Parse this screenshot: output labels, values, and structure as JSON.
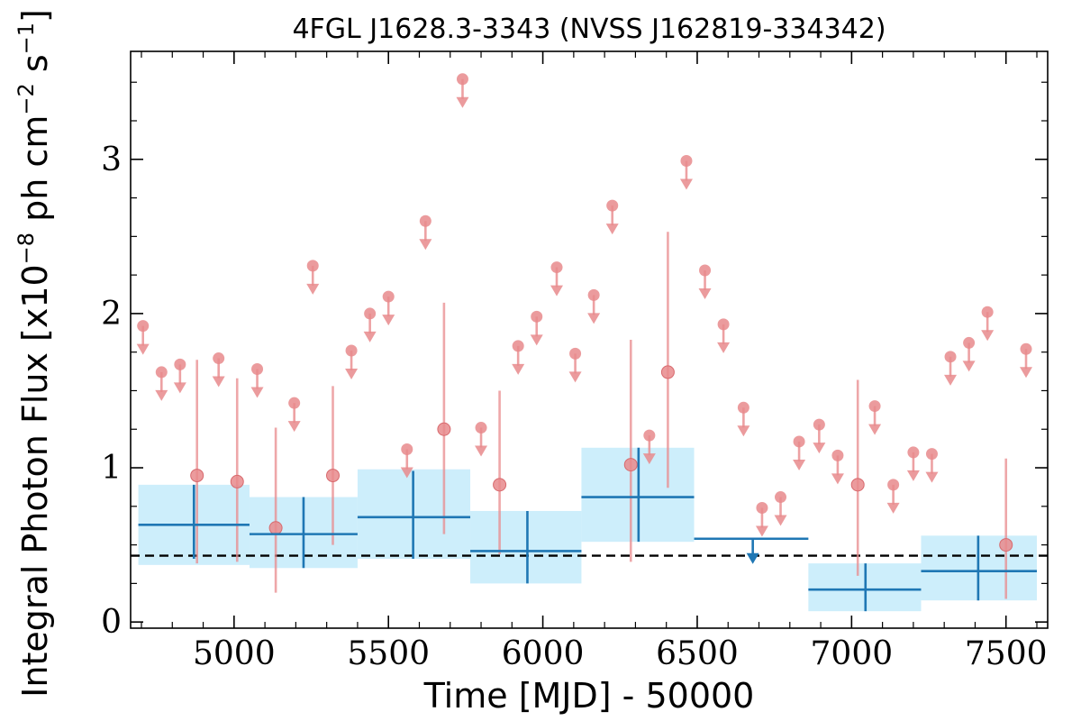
{
  "chart_data": {
    "type": "scatter",
    "title": "4FGL J1628.3-3343 (NVSS J162819-334342)",
    "xlabel": "Time [MJD] - 50000",
    "ylabel": {
      "prefix": "Integral Photon Flux [x10",
      "exp1": "−8",
      "mid": " ph cm",
      "exp2": "−2",
      "mid2": " s",
      "exp3": "−1",
      "suffix": "]"
    },
    "xlim": [
      4665,
      7635
    ],
    "ylim": [
      -0.04,
      3.7
    ],
    "xticks": [
      5000,
      5500,
      6000,
      6500,
      7000,
      7500
    ],
    "yticks": [
      0,
      1,
      2,
      3
    ],
    "reference_line": {
      "y": 0.43,
      "style": "dashed",
      "color": "#000000"
    },
    "colors": {
      "short_bins": "#e8898c",
      "long_bins": "#1f77b4",
      "long_bins_band": "#cdeefb"
    },
    "long_bins": [
      {
        "x": 4870,
        "x_lo": 4690,
        "x_hi": 5050,
        "y": 0.63,
        "y_lo": 0.41,
        "y_hi": 0.89,
        "band_lo": 0.37,
        "band_hi": 0.89
      },
      {
        "x": 5225,
        "x_lo": 5050,
        "x_hi": 5400,
        "y": 0.57,
        "y_lo": 0.35,
        "y_hi": 0.81,
        "band_lo": 0.35,
        "band_hi": 0.81
      },
      {
        "x": 5580,
        "x_lo": 5400,
        "x_hi": 5765,
        "y": 0.68,
        "y_lo": 0.41,
        "y_hi": 0.98,
        "band_lo": 0.41,
        "band_hi": 0.99
      },
      {
        "x": 5950,
        "x_lo": 5765,
        "x_hi": 6125,
        "y": 0.46,
        "y_lo": 0.25,
        "y_hi": 0.72,
        "band_lo": 0.25,
        "band_hi": 0.72
      },
      {
        "x": 6310,
        "x_lo": 6125,
        "x_hi": 6490,
        "y": 0.81,
        "y_lo": 0.52,
        "y_hi": 1.13,
        "band_lo": 0.52,
        "band_hi": 1.13
      },
      {
        "x": 6680,
        "x_lo": 6490,
        "x_hi": 6860,
        "y": 0.54,
        "upper_limit": true
      },
      {
        "x": 7045,
        "x_lo": 6860,
        "x_hi": 7225,
        "y": 0.21,
        "y_lo": 0.07,
        "y_hi": 0.38,
        "band_lo": 0.07,
        "band_hi": 0.38
      },
      {
        "x": 7410,
        "x_lo": 7225,
        "x_hi": 7600,
        "y": 0.33,
        "y_lo": 0.14,
        "y_hi": 0.56,
        "band_lo": 0.14,
        "band_hi": 0.56
      }
    ],
    "short_bin_detections": [
      {
        "x": 4880,
        "y": 0.95,
        "y_lo": 0.38,
        "y_hi": 1.7
      },
      {
        "x": 5010,
        "y": 0.91,
        "y_lo": 0.39,
        "y_hi": 1.58
      },
      {
        "x": 5135,
        "y": 0.61,
        "y_lo": 0.19,
        "y_hi": 1.26
      },
      {
        "x": 5320,
        "y": 0.95,
        "y_lo": 0.5,
        "y_hi": 1.53
      },
      {
        "x": 5680,
        "y": 1.25,
        "y_lo": 0.57,
        "y_hi": 2.07
      },
      {
        "x": 5860,
        "y": 0.89,
        "y_lo": 0.44,
        "y_hi": 1.5
      },
      {
        "x": 6285,
        "y": 1.02,
        "y_lo": 0.39,
        "y_hi": 1.83
      },
      {
        "x": 6405,
        "y": 1.62,
        "y_lo": 0.87,
        "y_hi": 2.53
      },
      {
        "x": 7020,
        "y": 0.89,
        "y_lo": 0.3,
        "y_hi": 1.57
      },
      {
        "x": 7500,
        "y": 0.5,
        "y_lo": 0.15,
        "y_hi": 1.06
      }
    ],
    "short_bin_upper_limits": [
      {
        "x": 4705,
        "y": 1.92
      },
      {
        "x": 4765,
        "y": 1.62
      },
      {
        "x": 4825,
        "y": 1.67
      },
      {
        "x": 4950,
        "y": 1.71
      },
      {
        "x": 5075,
        "y": 1.64
      },
      {
        "x": 5195,
        "y": 1.42
      },
      {
        "x": 5255,
        "y": 2.31
      },
      {
        "x": 5380,
        "y": 1.76
      },
      {
        "x": 5440,
        "y": 2.0
      },
      {
        "x": 5500,
        "y": 2.11
      },
      {
        "x": 5560,
        "y": 1.12
      },
      {
        "x": 5620,
        "y": 2.6
      },
      {
        "x": 5740,
        "y": 3.52
      },
      {
        "x": 5800,
        "y": 1.26
      },
      {
        "x": 5920,
        "y": 1.79
      },
      {
        "x": 5980,
        "y": 1.98
      },
      {
        "x": 6045,
        "y": 2.3
      },
      {
        "x": 6105,
        "y": 1.74
      },
      {
        "x": 6165,
        "y": 2.12
      },
      {
        "x": 6225,
        "y": 2.7
      },
      {
        "x": 6345,
        "y": 1.21
      },
      {
        "x": 6465,
        "y": 2.99
      },
      {
        "x": 6525,
        "y": 2.28
      },
      {
        "x": 6585,
        "y": 1.93
      },
      {
        "x": 6650,
        "y": 1.39
      },
      {
        "x": 6710,
        "y": 0.74
      },
      {
        "x": 6770,
        "y": 0.81
      },
      {
        "x": 6830,
        "y": 1.17
      },
      {
        "x": 6895,
        "y": 1.28
      },
      {
        "x": 6955,
        "y": 1.08
      },
      {
        "x": 7075,
        "y": 1.4
      },
      {
        "x": 7135,
        "y": 0.89
      },
      {
        "x": 7200,
        "y": 1.1
      },
      {
        "x": 7260,
        "y": 1.09
      },
      {
        "x": 7320,
        "y": 1.72
      },
      {
        "x": 7380,
        "y": 1.81
      },
      {
        "x": 7440,
        "y": 2.01
      },
      {
        "x": 7565,
        "y": 1.77
      }
    ]
  }
}
